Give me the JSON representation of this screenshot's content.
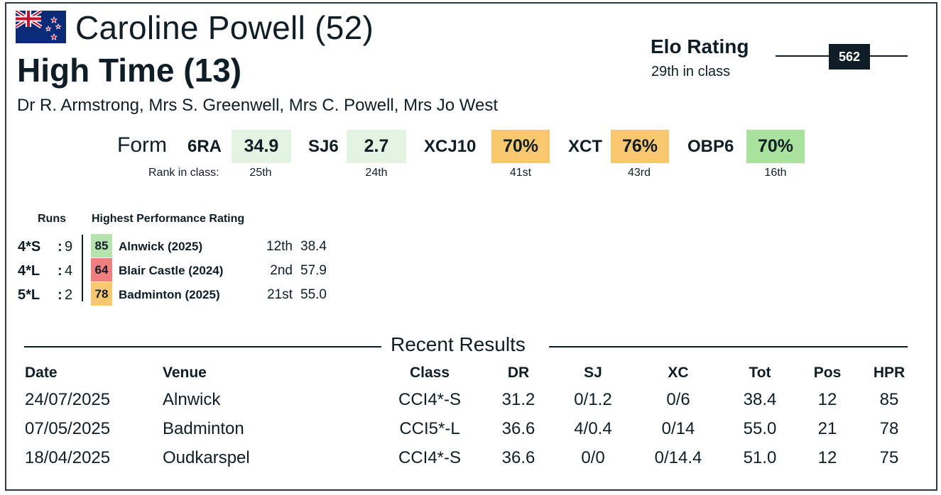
{
  "colors": {
    "green_light": "#e3f4e3",
    "green_mid": "#b4e3ae",
    "green": "#a9e29d",
    "orange": "#f9c86e",
    "red": "#ef7f7f",
    "dark": "#0f1e26"
  },
  "header": {
    "flag_icon": "new-zealand-flag-icon",
    "rider": "Caroline Powell (52)",
    "horse": "High Time (13)",
    "owners": "Dr R. Armstrong, Mrs S. Greenwell, Mrs C. Powell, Mrs Jo West"
  },
  "elo": {
    "title": "Elo Rating",
    "rank": "29th in class",
    "value": "562"
  },
  "form": {
    "label": "Form",
    "rank_label": "Rank in class:",
    "items": [
      {
        "key": "6RA",
        "value": "34.9",
        "rank": "25th",
        "color": "#e3f4e3"
      },
      {
        "key": "SJ6",
        "value": "2.7",
        "rank": "24th",
        "color": "#e3f4e3"
      },
      {
        "key": "XCJ10",
        "value": "70%",
        "rank": "41st",
        "color": "#f9c86e"
      },
      {
        "key": "XCT",
        "value": "76%",
        "rank": "43rd",
        "color": "#f9c86e"
      },
      {
        "key": "OBP6",
        "value": "70%",
        "rank": "16th",
        "color": "#a9e29d"
      }
    ]
  },
  "runs": {
    "runs_header": "Runs",
    "hpr_header": "Highest Performance Rating",
    "rows": [
      {
        "level": "4*S",
        "colon": ":",
        "count": "9",
        "score": "85",
        "color": "#b4e3ae",
        "venue": "Alnwick  (2025)",
        "pos": "12th",
        "total": "38.4"
      },
      {
        "level": "4*L",
        "colon": ":",
        "count": "4",
        "score": "64",
        "color": "#ef7f7f",
        "venue": "Blair Castle  (2024)",
        "pos": "2nd",
        "total": "57.9"
      },
      {
        "level": "5*L",
        "colon": ":",
        "count": "2",
        "score": "78",
        "color": "#f9c86e",
        "venue": "Badminton  (2025)",
        "pos": "21st",
        "total": "55.0"
      }
    ]
  },
  "recent": {
    "title": "Recent Results",
    "columns": [
      "Date",
      "Venue",
      "Class",
      "DR",
      "SJ",
      "XC",
      "Tot",
      "Pos",
      "HPR"
    ],
    "rows": [
      [
        "24/07/2025",
        "Alnwick",
        "CCI4*-S",
        "31.2",
        "0/1.2",
        "0/6",
        "38.4",
        "12",
        "85"
      ],
      [
        "07/05/2025",
        "Badminton",
        "CCI5*-L",
        "36.6",
        "4/0.4",
        "0/14",
        "55.0",
        "21",
        "78"
      ],
      [
        "18/04/2025",
        "Oudkarspel",
        "CCI4*-S",
        "36.6",
        "0/0",
        "0/14.4",
        "51.0",
        "12",
        "75"
      ]
    ]
  }
}
